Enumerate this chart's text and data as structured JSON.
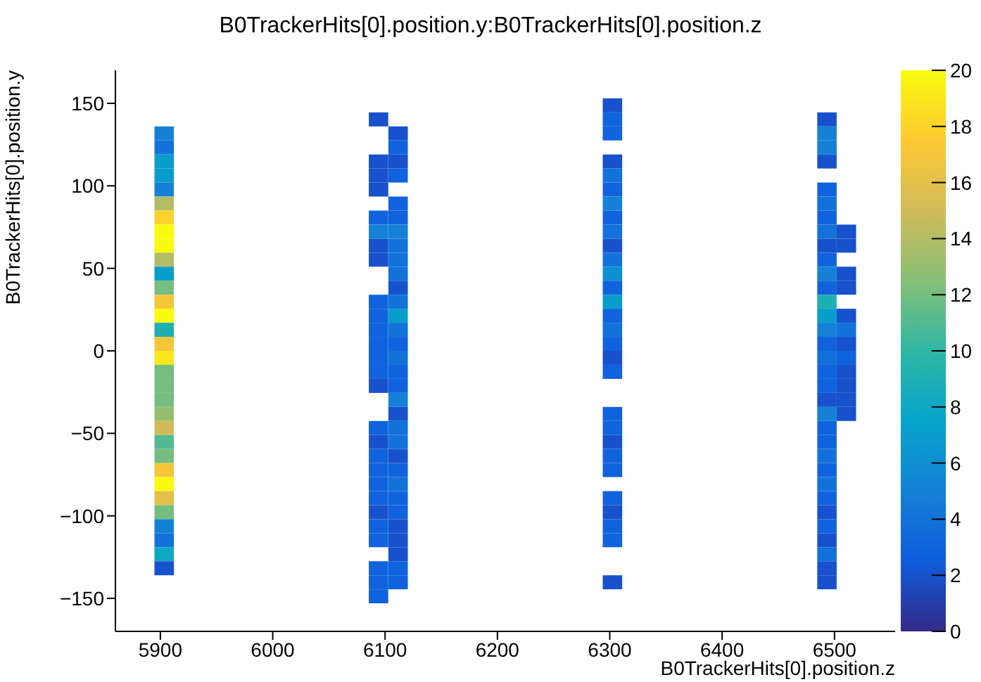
{
  "chart_data": {
    "type": "heatmap",
    "title": "B0TrackerHits[0].position.y:B0TrackerHits[0].position.z",
    "xlabel": "B0TrackerHits[0].position.z",
    "ylabel": "B0TrackerHits[0].position.y",
    "x": [
      5886.0,
      5903.4,
      5920.7,
      6076.9,
      6094.2,
      6111.6,
      6128.9,
      6285.1,
      6302.4,
      6319.8,
      6475.9,
      6493.3,
      6510.6,
      6528.0
    ],
    "y": [
      148.75,
      140.25,
      131.75,
      123.25,
      114.75,
      106.25,
      97.75,
      89.25,
      80.75,
      72.25,
      63.75,
      55.25,
      46.75,
      38.25,
      29.75,
      21.25,
      12.75,
      4.25,
      -4.25,
      -12.75,
      -21.25,
      -29.75,
      -38.25,
      -46.75,
      -55.25,
      -63.75,
      -72.25,
      -80.75,
      -89.25,
      -97.75,
      -106.25,
      -114.75,
      -123.25,
      -131.75,
      -140.25,
      -148.75
    ],
    "cells": [
      [
        null,
        null,
        null,
        null,
        null,
        null,
        null,
        null,
        2,
        null,
        null,
        null,
        null,
        null
      ],
      [
        null,
        null,
        null,
        null,
        2,
        null,
        null,
        null,
        3,
        null,
        null,
        2,
        null,
        null
      ],
      [
        null,
        5,
        null,
        null,
        null,
        2,
        null,
        null,
        3,
        null,
        null,
        5,
        null,
        null
      ],
      [
        null,
        4,
        null,
        null,
        null,
        3,
        null,
        null,
        null,
        null,
        null,
        5,
        null,
        null
      ],
      [
        null,
        7,
        null,
        null,
        2,
        2,
        null,
        null,
        2,
        null,
        null,
        2,
        null,
        null
      ],
      [
        null,
        7,
        null,
        null,
        2,
        3,
        null,
        null,
        4,
        null,
        null,
        null,
        null,
        null
      ],
      [
        null,
        5,
        null,
        null,
        2,
        null,
        null,
        null,
        3,
        null,
        null,
        3,
        null,
        null
      ],
      [
        null,
        14,
        null,
        null,
        null,
        3,
        null,
        null,
        5,
        null,
        null,
        4,
        null,
        null
      ],
      [
        null,
        18,
        null,
        null,
        3,
        3,
        null,
        null,
        3,
        null,
        null,
        3,
        null,
        null
      ],
      [
        null,
        20,
        null,
        null,
        5,
        5,
        null,
        null,
        4,
        null,
        null,
        4,
        2,
        null
      ],
      [
        null,
        20,
        null,
        null,
        2,
        4,
        null,
        null,
        2,
        null,
        null,
        2,
        2,
        null
      ],
      [
        null,
        14,
        null,
        null,
        2,
        4,
        null,
        null,
        4,
        null,
        null,
        3,
        null,
        null
      ],
      [
        null,
        7,
        null,
        null,
        null,
        4,
        null,
        null,
        6,
        null,
        null,
        5,
        2,
        null
      ],
      [
        null,
        12,
        null,
        null,
        null,
        2,
        null,
        null,
        3,
        null,
        null,
        3,
        2,
        null
      ],
      [
        null,
        17,
        null,
        null,
        3,
        4,
        null,
        null,
        7,
        null,
        null,
        9,
        null,
        null
      ],
      [
        null,
        20,
        null,
        null,
        3,
        7,
        null,
        null,
        3,
        null,
        null,
        7,
        2,
        null
      ],
      [
        null,
        9,
        null,
        null,
        3,
        4,
        null,
        null,
        4,
        null,
        null,
        5,
        4,
        null
      ],
      [
        null,
        17,
        null,
        null,
        3,
        3,
        null,
        null,
        3,
        null,
        null,
        3,
        2,
        null
      ],
      [
        null,
        19,
        null,
        null,
        3,
        4,
        null,
        null,
        2,
        null,
        null,
        4,
        3,
        null
      ],
      [
        null,
        12,
        null,
        null,
        3,
        3,
        null,
        null,
        3,
        null,
        null,
        3,
        2,
        null
      ],
      [
        null,
        12,
        null,
        null,
        2,
        3,
        null,
        null,
        null,
        null,
        null,
        3,
        2,
        null
      ],
      [
        null,
        12,
        null,
        null,
        null,
        5,
        null,
        null,
        null,
        null,
        null,
        2,
        2,
        null
      ],
      [
        null,
        13,
        null,
        null,
        null,
        2,
        null,
        null,
        3,
        null,
        null,
        5,
        2,
        null
      ],
      [
        null,
        15,
        null,
        null,
        3,
        4,
        null,
        null,
        3,
        null,
        null,
        3,
        null,
        null
      ],
      [
        null,
        11,
        null,
        null,
        2,
        4,
        null,
        null,
        2,
        null,
        null,
        3,
        null,
        null
      ],
      [
        null,
        12,
        null,
        null,
        3,
        2,
        null,
        null,
        3,
        null,
        null,
        4,
        null,
        null
      ],
      [
        null,
        17,
        null,
        null,
        3,
        3,
        null,
        null,
        3,
        null,
        null,
        3,
        null,
        null
      ],
      [
        null,
        20,
        null,
        null,
        3,
        4,
        null,
        null,
        null,
        null,
        null,
        4,
        null,
        null
      ],
      [
        null,
        16,
        null,
        null,
        3,
        3,
        null,
        null,
        3,
        null,
        null,
        3,
        null,
        null
      ],
      [
        null,
        12,
        null,
        null,
        2,
        3,
        null,
        null,
        2,
        null,
        null,
        2,
        null,
        null
      ],
      [
        null,
        5,
        null,
        null,
        3,
        2,
        null,
        null,
        3,
        null,
        null,
        3,
        null,
        null
      ],
      [
        null,
        4,
        null,
        null,
        3,
        2,
        null,
        null,
        3,
        null,
        null,
        2,
        null,
        null
      ],
      [
        null,
        8,
        null,
        null,
        null,
        2,
        null,
        null,
        null,
        null,
        null,
        4,
        null,
        null
      ],
      [
        null,
        2,
        null,
        null,
        3,
        3,
        null,
        null,
        null,
        null,
        null,
        2,
        null,
        null
      ],
      [
        null,
        null,
        null,
        null,
        3,
        3,
        null,
        null,
        2,
        null,
        null,
        2,
        null,
        null
      ],
      [
        null,
        null,
        null,
        null,
        3,
        null,
        null,
        null,
        null,
        null,
        null,
        null,
        null,
        null
      ]
    ],
    "xlim": [
      5860,
      6554
    ],
    "xticks": [
      5900,
      6000,
      6100,
      6200,
      6300,
      6400,
      6500
    ],
    "ylim": [
      -170,
      170
    ],
    "yticks": [
      -150,
      -100,
      -50,
      0,
      50,
      100,
      150
    ],
    "clim": [
      0,
      20
    ],
    "cticks": [
      0,
      2,
      4,
      6,
      8,
      10,
      12,
      14,
      16,
      18,
      20
    ]
  }
}
